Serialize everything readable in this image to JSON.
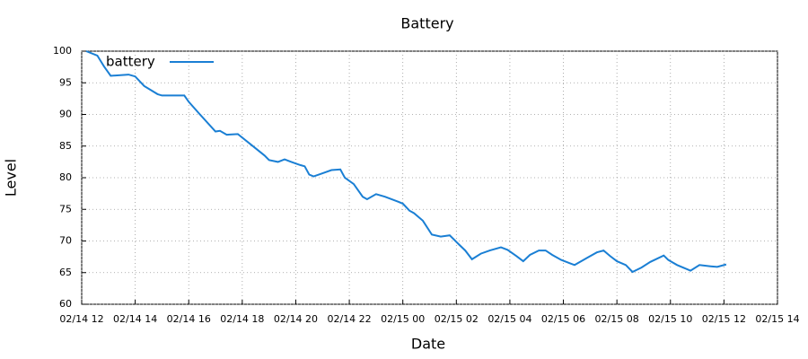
{
  "chart_data": {
    "type": "line",
    "title": "Battery",
    "x_label": "Date",
    "y_label": "Level",
    "x": [
      "02/14 12:10",
      "02/14 12:35",
      "02/14 12:50",
      "02/14 13:05",
      "02/14 13:45",
      "02/14 14:00",
      "02/14 14:20",
      "02/14 14:50",
      "02/14 15:00",
      "02/14 15:50",
      "02/14 16:00",
      "02/14 16:25",
      "02/14 17:00",
      "02/14 17:10",
      "02/14 17:25",
      "02/14 17:50",
      "02/14 18:20",
      "02/14 18:50",
      "02/14 19:00",
      "02/14 19:20",
      "02/14 19:35",
      "02/14 19:50",
      "02/14 20:10",
      "02/14 20:20",
      "02/14 20:30",
      "02/14 20:40",
      "02/14 21:00",
      "02/14 21:20",
      "02/14 21:40",
      "02/14 21:50",
      "02/14 22:10",
      "02/14 22:30",
      "02/14 22:40",
      "02/14 23:00",
      "02/14 23:20",
      "02/14 23:50",
      "02/15 00:00",
      "02/15 00:15",
      "02/15 00:25",
      "02/15 00:45",
      "02/15 01:05",
      "02/15 01:25",
      "02/15 01:45",
      "02/15 02:05",
      "02/15 02:20",
      "02/15 02:35",
      "02/15 02:55",
      "02/15 03:15",
      "02/15 03:40",
      "02/15 03:55",
      "02/15 04:15",
      "02/15 04:30",
      "02/15 04:45",
      "02/15 05:05",
      "02/15 05:20",
      "02/15 05:35",
      "02/15 05:55",
      "02/15 06:25",
      "02/15 06:55",
      "02/15 07:15",
      "02/15 07:30",
      "02/15 07:45",
      "02/15 08:00",
      "02/15 08:20",
      "02/15 08:35",
      "02/15 08:55",
      "02/15 09:15",
      "02/15 09:45",
      "02/15 09:55",
      "02/15 10:15",
      "02/15 10:45",
      "02/15 11:05",
      "02/15 11:30",
      "02/15 11:45",
      "02/15 12:05"
    ],
    "series": [
      {
        "name": "battery",
        "color": "#1a7fd4",
        "values": [
          100,
          99.3,
          97.6,
          96.1,
          96.3,
          96.0,
          94.5,
          93.2,
          93.0,
          93.0,
          92,
          90,
          87.3,
          87.4,
          86.8,
          86.9,
          85.2,
          83.5,
          82.8,
          82.5,
          82.9,
          82.5,
          82.0,
          81.8,
          80.5,
          80.2,
          80.7,
          81.2,
          81.3,
          80,
          79.0,
          77,
          76.6,
          77.4,
          77.0,
          76.2,
          75.9,
          74.8,
          74.4,
          73.2,
          71.0,
          70.7,
          70.9,
          69.5,
          68.5,
          67.1,
          68,
          68.5,
          69.0,
          68.6,
          67.6,
          66.8,
          67.8,
          68.5,
          68.5,
          67.8,
          67,
          66.2,
          67.4,
          68.2,
          68.5,
          67.6,
          66.8,
          66.2,
          65.1,
          65.8,
          66.7,
          67.7,
          67.0,
          66.2,
          65.3,
          66.2,
          66.0,
          65.9,
          66.3
        ]
      }
    ],
    "xlim": [
      "02/14 12",
      "02/15 14"
    ],
    "xticks": [
      "02/14 12",
      "02/14 14",
      "02/14 16",
      "02/14 18",
      "02/14 20",
      "02/14 22",
      "02/15 00",
      "02/15 02",
      "02/15 04",
      "02/15 06",
      "02/15 08",
      "02/15 10",
      "02/15 12",
      "02/15 14"
    ],
    "ylim": [
      60,
      100
    ],
    "yticks": [
      60,
      65,
      70,
      75,
      80,
      85,
      90,
      95,
      100
    ],
    "grid": true,
    "legend": "upper left"
  }
}
